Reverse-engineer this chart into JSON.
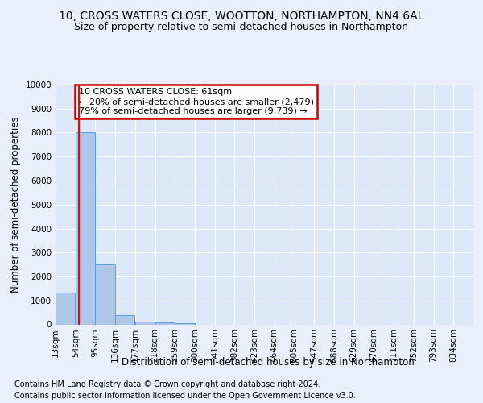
{
  "title1": "10, CROSS WATERS CLOSE, WOOTTON, NORTHAMPTON, NN4 6AL",
  "title2": "Size of property relative to semi-detached houses in Northampton",
  "xlabel": "Distribution of semi-detached houses by size in Northampton",
  "ylabel": "Number of semi-detached properties",
  "footer1": "Contains HM Land Registry data © Crown copyright and database right 2024.",
  "footer2": "Contains public sector information licensed under the Open Government Licence v3.0.",
  "annotation_title": "10 CROSS WATERS CLOSE: 61sqm",
  "annotation_line1": "← 20% of semi-detached houses are smaller (2,479)",
  "annotation_line2": "79% of semi-detached houses are larger (9,739) →",
  "bar_categories": [
    "13sqm",
    "54sqm",
    "95sqm",
    "136sqm",
    "177sqm",
    "218sqm",
    "259sqm",
    "300sqm",
    "341sqm",
    "382sqm",
    "423sqm",
    "464sqm",
    "505sqm",
    "547sqm",
    "588sqm",
    "629sqm",
    "670sqm",
    "711sqm",
    "752sqm",
    "793sqm",
    "834sqm"
  ],
  "bar_edges": [
    0,
    1,
    2,
    3,
    4,
    5,
    6,
    7,
    8,
    9,
    10,
    11,
    12,
    13,
    14,
    15,
    16,
    17,
    18,
    19,
    20
  ],
  "bar_heights": [
    1320,
    8020,
    2500,
    370,
    130,
    70,
    50,
    0,
    0,
    0,
    0,
    0,
    0,
    0,
    0,
    0,
    0,
    0,
    0,
    0,
    0
  ],
  "bar_color": "#aec6e8",
  "bar_edge_color": "#5a9fd4",
  "red_line_x": 1.17,
  "ylim": [
    0,
    10000
  ],
  "yticks": [
    0,
    1000,
    2000,
    3000,
    4000,
    5000,
    6000,
    7000,
    8000,
    9000,
    10000
  ],
  "bg_color": "#eaf0fb",
  "plot_bg_color": "#dce8f7",
  "grid_color": "#ffffff",
  "annotation_box_color": "#ffffff",
  "annotation_box_edge": "#cc0000",
  "title1_fontsize": 10,
  "title2_fontsize": 9,
  "axis_label_fontsize": 8.5,
  "tick_fontsize": 7.5,
  "footer_fontsize": 7
}
